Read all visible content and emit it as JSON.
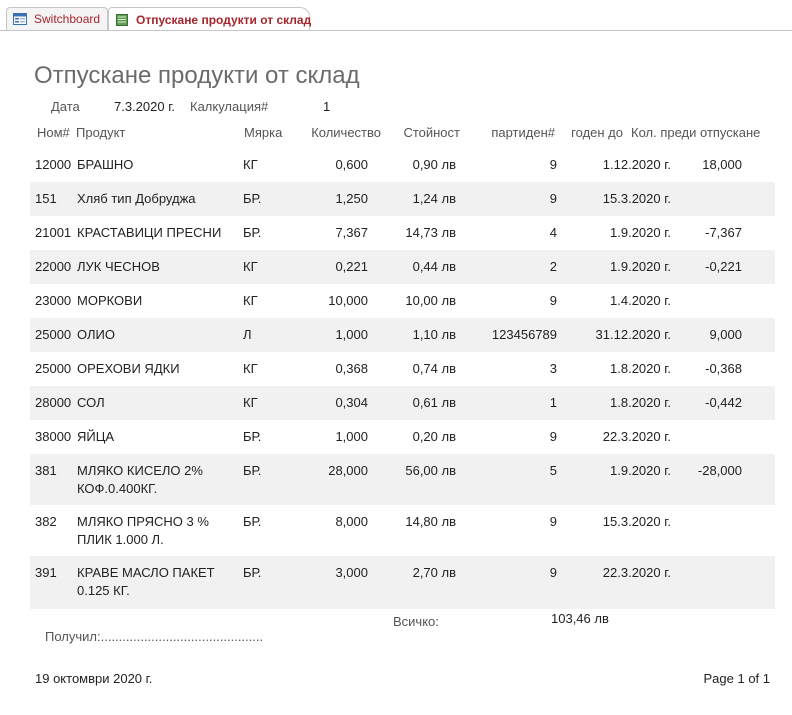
{
  "tabs": [
    {
      "label": "Switchboard"
    },
    {
      "label": "Отпускане продукти от склад"
    }
  ],
  "report": {
    "title": "Отпускане продукти от склад",
    "date_label": "Дата",
    "date_value": "7.3.2020 г.",
    "calc_label": "Калкулация#",
    "calc_value": "1"
  },
  "columns": {
    "num": "Ном#",
    "product": "Продукт",
    "unit": "Мярка",
    "qty": "Количество",
    "cost": "Стойност",
    "batch": "партиден#",
    "expiry": "годен до",
    "before": "Кол. преди отпускане"
  },
  "rows": [
    {
      "num": "12000",
      "product": "БРАШНО",
      "unit": "КГ",
      "qty": "0,600",
      "cost": "0,90 лв",
      "batch": "9",
      "expiry": "1.12.2020 г.",
      "before": "18,000"
    },
    {
      "num": "151",
      "product": "Хляб тип Добруджа",
      "unit": "БР.",
      "qty": "1,250",
      "cost": "1,24 лв",
      "batch": "9",
      "expiry": "15.3.2020 г.",
      "before": ""
    },
    {
      "num": "21001",
      "product": "КРАСТАВИЦИ ПРЕСНИ",
      "unit": "БР.",
      "qty": "7,367",
      "cost": "14,73 лв",
      "batch": "4",
      "expiry": "1.9.2020 г.",
      "before": "-7,367"
    },
    {
      "num": "22000",
      "product": "ЛУК ЧЕСНОВ",
      "unit": "КГ",
      "qty": "0,221",
      "cost": "0,44 лв",
      "batch": "2",
      "expiry": "1.9.2020 г.",
      "before": "-0,221"
    },
    {
      "num": "23000",
      "product": "МОРКОВИ",
      "unit": "КГ",
      "qty": "10,000",
      "cost": "10,00 лв",
      "batch": "9",
      "expiry": "1.4.2020 г.",
      "before": ""
    },
    {
      "num": "25000",
      "product": "ОЛИО",
      "unit": "Л",
      "qty": "1,000",
      "cost": "1,10 лв",
      "batch": "123456789",
      "expiry": "31.12.2020 г.",
      "before": "9,000"
    },
    {
      "num": "25000",
      "product": "ОРЕХОВИ ЯДКИ",
      "unit": "КГ",
      "qty": "0,368",
      "cost": "0,74 лв",
      "batch": "3",
      "expiry": "1.8.2020 г.",
      "before": "-0,368"
    },
    {
      "num": "28000",
      "product": "СОЛ",
      "unit": "КГ",
      "qty": "0,304",
      "cost": "0,61 лв",
      "batch": "1",
      "expiry": "1.8.2020 г.",
      "before": "-0,442"
    },
    {
      "num": "38000",
      "product": "ЯЙЦА",
      "unit": "БР.",
      "qty": "1,000",
      "cost": "0,20 лв",
      "batch": "9",
      "expiry": "22.3.2020 г.",
      "before": ""
    },
    {
      "num": "381",
      "product": "МЛЯКО КИСЕЛО 2% КОФ.0.400КГ.",
      "unit": "БР.",
      "qty": "28,000",
      "cost": "56,00 лв",
      "batch": "5",
      "expiry": "1.9.2020 г.",
      "before": "-28,000"
    },
    {
      "num": "382",
      "product": "МЛЯКО ПРЯСНО 3 % ПЛИК 1.000 Л.",
      "unit": "БР.",
      "qty": "8,000",
      "cost": "14,80 лв",
      "batch": "9",
      "expiry": "15.3.2020 г.",
      "before": ""
    },
    {
      "num": "391",
      "product": "КРАВЕ МАСЛО ПАКЕТ 0.125 КГ.",
      "unit": "БР.",
      "qty": "3,000",
      "cost": "2,70 лв",
      "batch": "9",
      "expiry": "22.3.2020 г.",
      "before": ""
    }
  ],
  "footer": {
    "received": "Получил:.............................................",
    "total_label": "Всичко:",
    "total_value": "103,46 лв",
    "print_date": "19 октомври 2020 г.",
    "page": "Page 1 of 1"
  },
  "colors": {
    "tab_text": "#a4262c",
    "alt_row": "#f1f1f1",
    "title": "#6b6b6b"
  }
}
